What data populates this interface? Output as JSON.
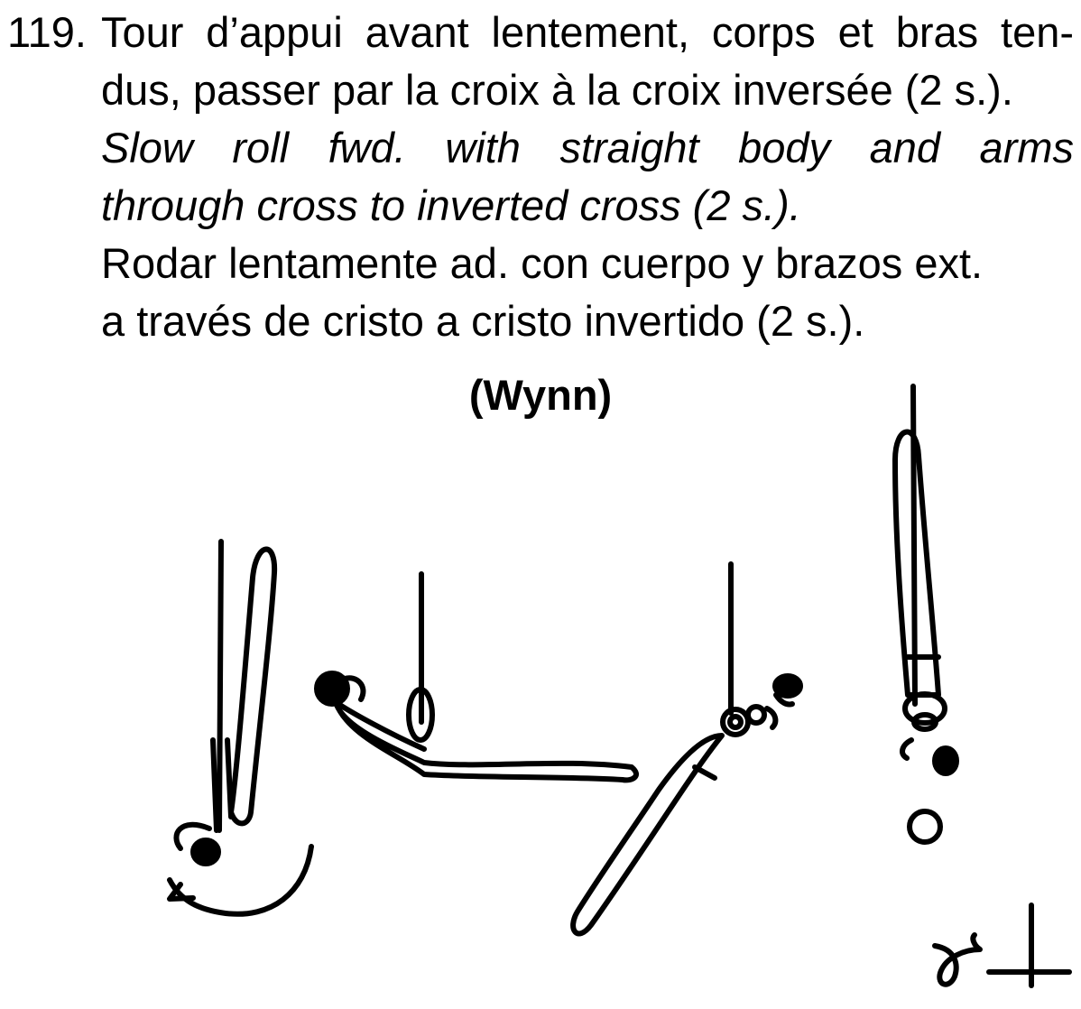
{
  "element": {
    "number": "119.",
    "french": [
      "Tour d’appui avant lentement, corps et bras ten-",
      "dus, passer par la croix à la croix inversée (2 s.)."
    ],
    "english": [
      "Slow roll fwd. with straight body and arms",
      "through cross to inverted cross (2 s.)."
    ],
    "spanish": [
      "Rodar lentamente ad. con cuerpo y brazos ext.",
      "a través de cristo a cristo invertido (2 s.)."
    ],
    "author": "(Wynn)"
  },
  "figure": {
    "poses": [
      "inverted-hang-start",
      "cross-horizontal",
      "diagonal-roll",
      "inverted-cross"
    ],
    "symbol": "difficulty-symbol"
  }
}
